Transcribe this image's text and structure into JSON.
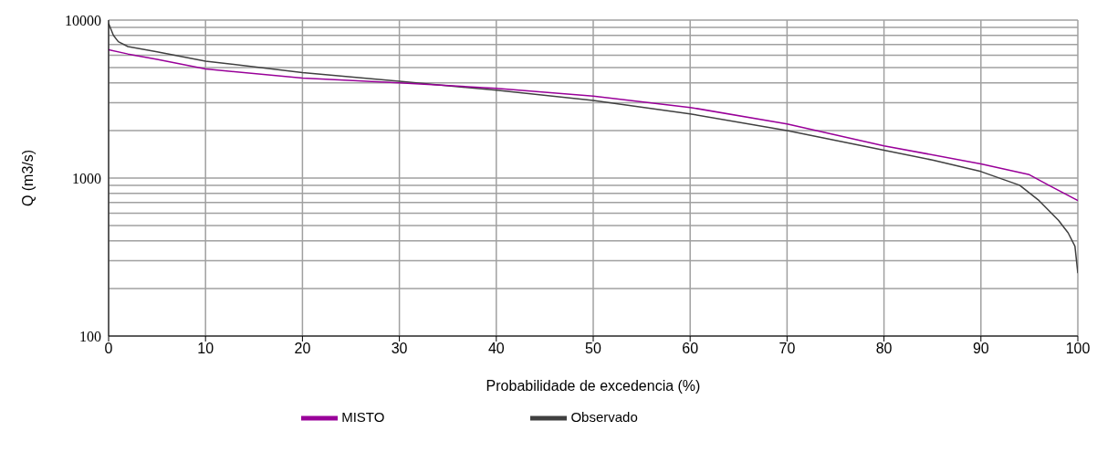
{
  "chart_data": {
    "type": "line",
    "xlabel": "Probabilidade de excedencia  (%)",
    "ylabel": "Q (m3/s)",
    "xlim": [
      0,
      100
    ],
    "xticks": [
      0,
      10,
      20,
      30,
      40,
      50,
      60,
      70,
      80,
      90,
      100
    ],
    "ylim": [
      100,
      10000
    ],
    "yticks": [
      100,
      {
        "value": 200,
        "label": null
      },
      {
        "value": 300,
        "label": null
      },
      {
        "value": 400,
        "label": null
      },
      {
        "value": 500,
        "label": null
      },
      {
        "value": 600,
        "label": null
      },
      {
        "value": 700,
        "label": null
      },
      {
        "value": 800,
        "label": null
      },
      {
        "value": 900,
        "label": null
      },
      1000,
      {
        "value": 2000,
        "label": null
      },
      {
        "value": 3000,
        "label": null
      },
      {
        "value": 4000,
        "label": null
      },
      {
        "value": 5000,
        "label": null
      },
      {
        "value": 6000,
        "label": null
      },
      {
        "value": 7000,
        "label": null
      },
      {
        "value": 8000,
        "label": null
      },
      {
        "value": 9000,
        "label": null
      },
      10000
    ],
    "log": "y",
    "grid": true,
    "legend": "bottom",
    "marker": "none",
    "line_style": "solid",
    "series": [
      {
        "name": "Observado",
        "color": "#404040",
        "x": [
          0,
          0.5,
          1,
          2,
          5,
          10,
          20,
          30,
          40,
          50,
          60,
          70,
          80,
          85,
          90,
          94,
          96,
          98,
          99,
          99.7,
          100
        ],
        "values": [
          9500,
          8000,
          7300,
          6800,
          6300,
          5500,
          4650,
          4100,
          3600,
          3100,
          2550,
          2000,
          1500,
          1300,
          1100,
          900,
          720,
          540,
          450,
          370,
          250
        ]
      },
      {
        "name": "MISTO",
        "color": "#990099",
        "x": [
          0,
          2,
          5,
          10,
          20,
          30,
          40,
          50,
          60,
          70,
          80,
          90,
          95,
          97,
          100
        ],
        "values": [
          6500,
          6100,
          5650,
          4900,
          4300,
          4000,
          3700,
          3300,
          2800,
          2200,
          1600,
          1230,
          1050,
          900,
          720
        ]
      }
    ]
  }
}
